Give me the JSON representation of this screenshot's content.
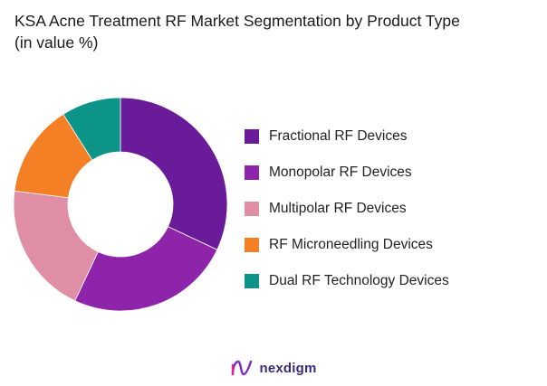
{
  "title_line1": "KSA Acne Treatment RF Market Segmentation by Product Type",
  "title_line2": "(in value %)",
  "brand": {
    "name": "nexdigm",
    "icon": "nexdigm-logo-icon"
  },
  "chart_data": {
    "type": "pie",
    "hole": true,
    "legend_position": "right",
    "categories": [
      "Fractional RF Devices",
      "Monopolar RF Devices",
      "Multipolar RF Devices",
      "RF Microneedling Devices",
      "Dual RF Technology Devices"
    ],
    "values": [
      32,
      25,
      20,
      14,
      9
    ],
    "colors": [
      "#6a1b9a",
      "#8e24aa",
      "#e08ea5",
      "#f47f24",
      "#0d9488"
    ]
  }
}
